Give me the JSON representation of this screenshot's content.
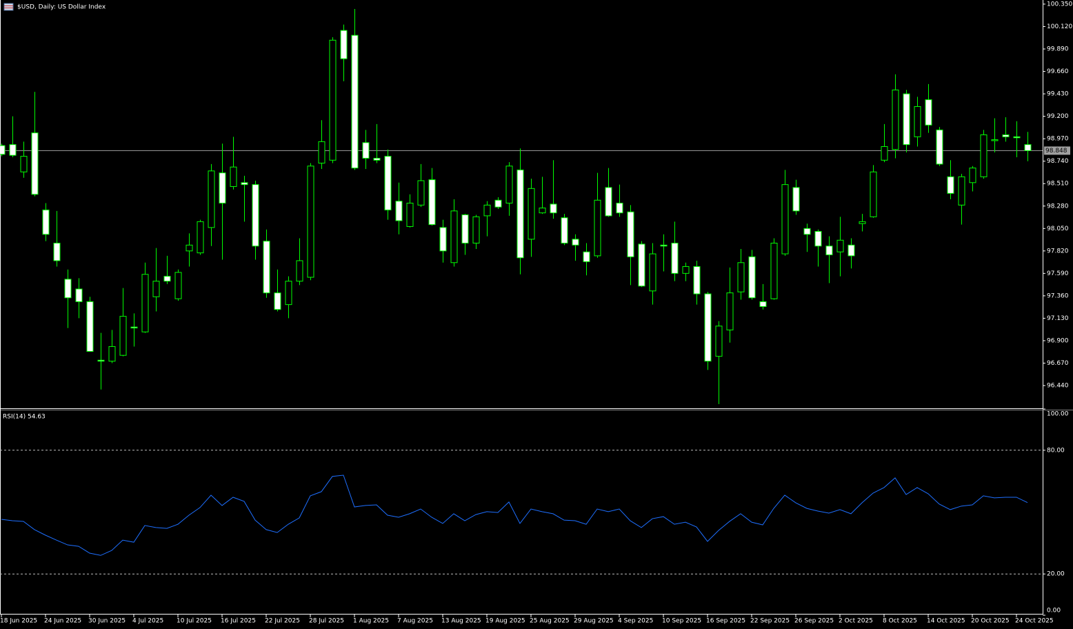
{
  "chart_data": [
    {
      "type": "candlestick",
      "title": "$USD, Daily:  US Dollar Index",
      "categories": [
        "18 Jun 2025",
        null,
        null,
        null,
        "24 Jun 2025",
        null,
        null,
        null,
        "30 Jun 2025",
        null,
        null,
        null,
        "4 Jul 2025",
        null,
        null,
        null,
        "10 Jul 2025",
        null,
        null,
        null,
        "16 Jul 2025",
        null,
        null,
        null,
        "22 Jul 2025",
        null,
        null,
        null,
        "28 Jul 2025",
        null,
        null,
        null,
        "1 Aug 2025",
        null,
        null,
        null,
        "7 Aug 2025",
        null,
        null,
        null,
        "13 Aug 2025",
        null,
        null,
        null,
        "19 Aug 2025",
        null,
        null,
        null,
        "25 Aug 2025",
        null,
        null,
        null,
        "29 Aug 2025",
        null,
        null,
        null,
        "4 Sep 2025",
        null,
        null,
        null,
        "10 Sep 2025",
        null,
        null,
        null,
        "16 Sep 2025",
        null,
        null,
        null,
        "22 Sep 2025",
        null,
        null,
        null,
        "26 Sep 2025",
        null,
        null,
        null,
        "2 Oct 2025",
        null,
        null,
        null,
        "8 Oct 2025",
        null,
        null,
        null,
        "14 Oct 2025",
        null,
        null,
        null,
        "20 Oct 2025",
        null,
        null,
        null,
        "24 Oct 2025",
        null
      ],
      "open": [
        98.9,
        98.91,
        98.63,
        99.03,
        98.24,
        97.9,
        97.53,
        97.43,
        97.3,
        96.7,
        96.69,
        96.75,
        97.04,
        96.99,
        97.35,
        97.56,
        97.33,
        97.82,
        97.8,
        98.06,
        98.62,
        98.48,
        98.52,
        98.5,
        97.92,
        97.39,
        97.27,
        97.51,
        97.55,
        98.72,
        98.75,
        100.08,
        100.03,
        98.93,
        98.77,
        98.79,
        98.33,
        98.07,
        98.29,
        98.55,
        98.06,
        97.7,
        98.19,
        97.9,
        98.18,
        98.34,
        98.31,
        98.65,
        97.94,
        98.21,
        98.3,
        98.16,
        97.94,
        97.81,
        97.77,
        98.47,
        98.31,
        98.22,
        97.89,
        97.41,
        97.88,
        97.9,
        97.59,
        97.66,
        97.38,
        96.74,
        97.01,
        97.4,
        97.76,
        97.3,
        97.33,
        97.79,
        98.47,
        98.05,
        98.02,
        97.87,
        97.81,
        97.88,
        98.1,
        98.17,
        98.75,
        98.86,
        99.43,
        98.99,
        99.37,
        99.06,
        98.58,
        98.29,
        98.52,
        98.58,
        98.95,
        99.01,
        98.99,
        98.91
      ],
      "high": [
        98.92,
        99.2,
        98.94,
        99.45,
        98.31,
        98.23,
        97.63,
        97.54,
        97.35,
        96.98,
        97.01,
        97.44,
        97.18,
        97.7,
        97.85,
        97.77,
        97.63,
        98.0,
        98.14,
        98.71,
        98.92,
        98.99,
        98.59,
        98.54,
        98.04,
        97.63,
        97.56,
        97.95,
        98.72,
        99.16,
        100.01,
        100.14,
        100.3,
        99.06,
        99.12,
        98.86,
        98.52,
        98.4,
        98.71,
        98.67,
        98.14,
        98.35,
        98.2,
        98.19,
        98.33,
        98.37,
        98.73,
        98.87,
        98.56,
        98.58,
        98.75,
        98.2,
        97.99,
        97.9,
        98.62,
        98.67,
        98.5,
        98.29,
        97.92,
        97.9,
        97.99,
        98.12,
        97.7,
        97.72,
        97.4,
        97.1,
        97.65,
        97.84,
        97.83,
        97.48,
        97.95,
        98.65,
        98.55,
        98.1,
        98.04,
        97.97,
        98.17,
        97.95,
        98.2,
        98.7,
        99.12,
        99.63,
        99.47,
        99.4,
        99.53,
        99.09,
        98.75,
        98.61,
        98.69,
        99.06,
        99.18,
        99.19,
        99.15,
        99.04
      ],
      "low": [
        98.79,
        98.78,
        98.57,
        98.38,
        97.92,
        97.66,
        97.03,
        97.13,
        96.79,
        96.4,
        96.67,
        96.74,
        96.84,
        96.98,
        97.2,
        97.48,
        97.31,
        97.66,
        97.78,
        97.87,
        97.73,
        98.45,
        98.12,
        97.73,
        97.34,
        97.2,
        97.13,
        97.47,
        97.52,
        98.66,
        98.72,
        99.56,
        98.65,
        98.66,
        98.72,
        98.14,
        97.99,
        98.06,
        98.27,
        98.08,
        97.7,
        97.66,
        97.78,
        97.84,
        97.97,
        98.25,
        98.18,
        97.58,
        97.76,
        98.2,
        98.15,
        97.88,
        97.72,
        97.57,
        97.75,
        98.17,
        98.17,
        97.47,
        97.45,
        97.27,
        97.61,
        97.51,
        97.51,
        97.27,
        96.6,
        96.25,
        96.88,
        97.32,
        97.32,
        97.22,
        97.32,
        97.77,
        98.19,
        97.81,
        97.66,
        97.49,
        97.56,
        97.64,
        98.02,
        98.16,
        98.73,
        98.77,
        98.83,
        98.89,
        99.03,
        98.69,
        98.35,
        98.09,
        98.43,
        98.56,
        98.83,
        98.94,
        98.78,
        98.74
      ],
      "close": [
        98.81,
        98.8,
        98.79,
        98.4,
        97.99,
        97.72,
        97.34,
        97.3,
        96.79,
        96.69,
        96.84,
        97.15,
        97.03,
        97.58,
        97.51,
        97.51,
        97.6,
        97.88,
        98.12,
        98.64,
        98.31,
        98.68,
        98.5,
        97.87,
        97.39,
        97.22,
        97.51,
        97.72,
        98.69,
        98.94,
        99.98,
        99.79,
        98.67,
        98.77,
        98.75,
        98.24,
        98.13,
        98.31,
        98.54,
        98.09,
        97.82,
        98.23,
        97.9,
        98.17,
        98.29,
        98.27,
        98.69,
        97.75,
        98.46,
        98.26,
        98.21,
        97.9,
        97.88,
        97.71,
        98.34,
        98.18,
        98.21,
        97.76,
        97.46,
        97.79,
        97.87,
        97.59,
        97.66,
        97.38,
        96.69,
        97.05,
        97.39,
        97.7,
        97.34,
        97.25,
        97.9,
        98.5,
        98.23,
        97.99,
        97.87,
        97.78,
        97.93,
        97.77,
        98.12,
        98.63,
        98.89,
        99.47,
        98.91,
        99.3,
        99.11,
        98.71,
        98.41,
        98.58,
        98.67,
        99.01,
        98.96,
        98.99,
        98.98,
        98.848
      ],
      "current_price": 98.848,
      "ylim": [
        96.207,
        100.392
      ],
      "yticks": [
        {
          "value": 100.35,
          "label": "100.350"
        },
        {
          "value": 100.12,
          "label": "100.120"
        },
        {
          "value": 99.89,
          "label": "99.890"
        },
        {
          "value": 99.66,
          "label": "99.660"
        },
        {
          "value": 99.43,
          "label": "99.430"
        },
        {
          "value": 99.2,
          "label": "99.200"
        },
        {
          "value": 98.97,
          "label": "98.970"
        },
        {
          "value": 98.74,
          "label": "98.740"
        },
        {
          "value": 98.51,
          "label": "98.510"
        },
        {
          "value": 98.28,
          "label": "98.280"
        },
        {
          "value": 98.05,
          "label": "98.050"
        },
        {
          "value": 97.82,
          "label": "97.820"
        },
        {
          "value": 97.59,
          "label": "97.590"
        },
        {
          "value": 97.36,
          "label": "97.360"
        },
        {
          "value": 97.13,
          "label": "97.130"
        },
        {
          "value": 96.9,
          "label": "96.900"
        },
        {
          "value": 96.67,
          "label": "96.670"
        },
        {
          "value": 96.44,
          "label": "96.440"
        }
      ],
      "bull_color": "#000000",
      "bear_color": "#ffffff",
      "wick_color": "#00ff00",
      "grid": false
    },
    {
      "type": "line",
      "series": [
        {
          "name": "RSI(14)",
          "color": "#1e6fff",
          "values": [
            46.5,
            45.8,
            45.5,
            41.5,
            38.8,
            36.4,
            34.1,
            33.4,
            30.1,
            29.0,
            31.4,
            36.4,
            35.4,
            43.5,
            42.5,
            42.1,
            44.1,
            48.5,
            52.2,
            58.2,
            53.2,
            57.2,
            55.2,
            46.1,
            41.5,
            40.1,
            44.1,
            47.2,
            57.9,
            59.9,
            67.3,
            67.9,
            52.5,
            53.2,
            53.5,
            48.5,
            47.5,
            49.2,
            51.5,
            47.5,
            44.5,
            49.2,
            45.8,
            48.8,
            50.2,
            49.8,
            54.9,
            44.5,
            51.5,
            50.2,
            49.2,
            46.1,
            45.8,
            44.1,
            51.5,
            50.2,
            51.5,
            45.8,
            42.5,
            46.8,
            47.8,
            44.1,
            45.1,
            42.8,
            35.8,
            41.1,
            45.5,
            49.2,
            45.1,
            43.8,
            51.8,
            58.2,
            54.5,
            51.8,
            50.5,
            49.5,
            51.2,
            49.2,
            54.5,
            59.2,
            61.9,
            66.6,
            58.5,
            61.9,
            58.9,
            53.9,
            51.2,
            52.9,
            53.5,
            57.9,
            56.9,
            57.2,
            57.2,
            54.63
          ]
        }
      ],
      "ylim": [
        0,
        100
      ],
      "yticks": [
        {
          "value": 100,
          "label": "100.00"
        },
        {
          "value": 80,
          "label": "80.00"
        },
        {
          "value": 20,
          "label": "20.00"
        },
        {
          "value": 0,
          "label": "0.00"
        }
      ],
      "grid": "dashed"
    }
  ]
}
